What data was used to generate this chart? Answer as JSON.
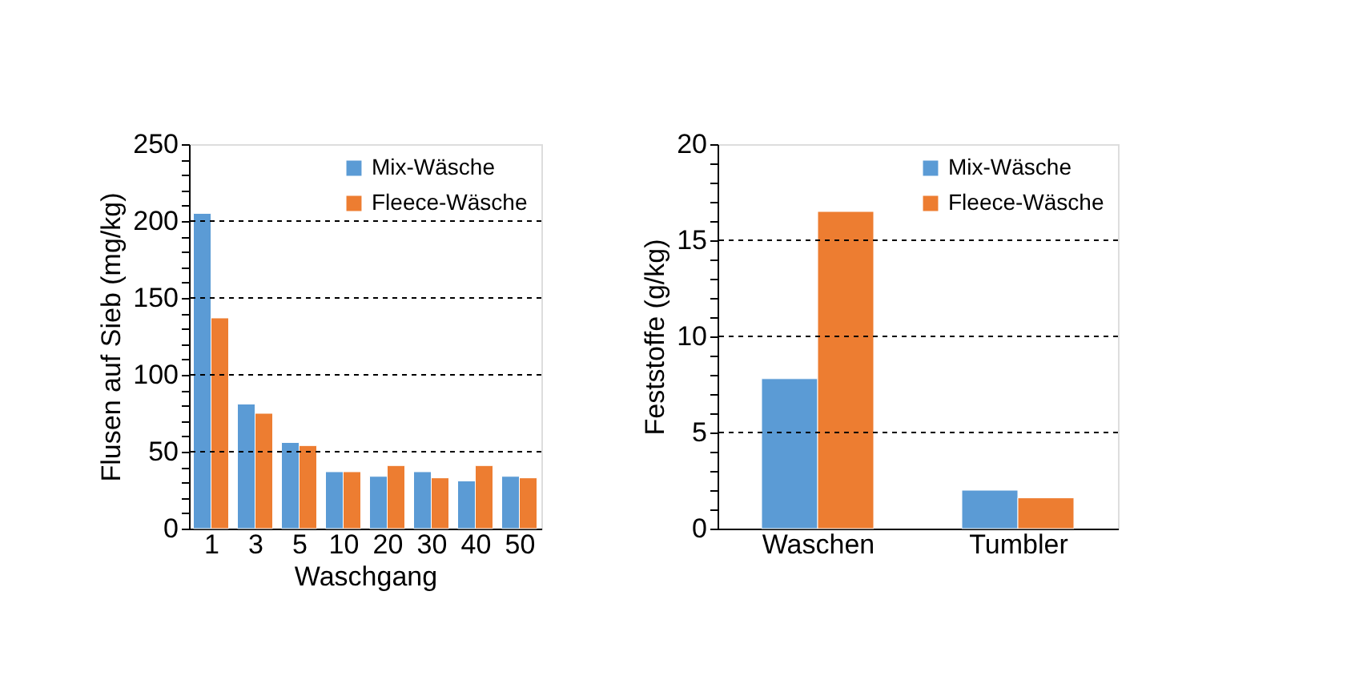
{
  "chart_data": [
    {
      "type": "bar",
      "xlabel": "Waschgang",
      "ylabel": "Flusen auf Sieb (mg/kg)",
      "categories": [
        "1",
        "3",
        "5",
        "10",
        "20",
        "30",
        "40",
        "50"
      ],
      "series": [
        {
          "name": "Mix-Wäsche",
          "color": "#5b9bd5",
          "values": [
            205,
            81,
            56,
            37,
            34,
            37,
            31,
            34
          ]
        },
        {
          "name": "Fleece-Wäsche",
          "color": "#ed7d31",
          "values": [
            137,
            75,
            54,
            37,
            41,
            33,
            41,
            33
          ]
        }
      ],
      "ylim": [
        0,
        250
      ],
      "yticks": [
        0,
        {
          "value": 10,
          "label": null
        },
        {
          "value": 20,
          "label": null
        },
        {
          "value": 30,
          "label": null
        },
        {
          "value": 40,
          "label": null
        },
        50,
        {
          "value": 60,
          "label": null
        },
        {
          "value": 70,
          "label": null
        },
        {
          "value": 80,
          "label": null
        },
        {
          "value": 90,
          "label": null
        },
        100,
        {
          "value": 110,
          "label": null
        },
        {
          "value": 120,
          "label": null
        },
        {
          "value": 130,
          "label": null
        },
        {
          "value": 140,
          "label": null
        },
        150,
        {
          "value": 160,
          "label": null
        },
        {
          "value": 170,
          "label": null
        },
        {
          "value": 180,
          "label": null
        },
        {
          "value": 190,
          "label": null
        },
        200,
        {
          "value": 210,
          "label": null
        },
        {
          "value": 220,
          "label": null
        },
        {
          "value": 230,
          "label": null
        },
        {
          "value": 240,
          "label": null
        },
        250
      ],
      "grid": "y",
      "legend": "top right"
    },
    {
      "type": "bar",
      "ylabel": "Feststoffe (g/kg)",
      "categories": [
        "Waschen",
        "Tumbler"
      ],
      "series": [
        {
          "name": "Mix-Wäsche",
          "color": "#5b9bd5",
          "values": [
            7.8,
            2.0
          ]
        },
        {
          "name": "Fleece-Wäsche",
          "color": "#ed7d31",
          "values": [
            16.5,
            1.6
          ]
        }
      ],
      "ylim": [
        0,
        20
      ],
      "yticks": [
        0,
        {
          "value": 1,
          "label": null
        },
        {
          "value": 2,
          "label": null
        },
        {
          "value": 3,
          "label": null
        },
        {
          "value": 4,
          "label": null
        },
        5,
        {
          "value": 6,
          "label": null
        },
        {
          "value": 7,
          "label": null
        },
        {
          "value": 8,
          "label": null
        },
        {
          "value": 9,
          "label": null
        },
        10,
        {
          "value": 11,
          "label": null
        },
        {
          "value": 12,
          "label": null
        },
        {
          "value": 13,
          "label": null
        },
        {
          "value": 14,
          "label": null
        },
        15,
        {
          "value": 16,
          "label": null
        },
        {
          "value": 17,
          "label": null
        },
        {
          "value": 18,
          "label": null
        },
        {
          "value": 19,
          "label": null
        },
        20
      ],
      "grid": "y",
      "legend": "top right"
    }
  ]
}
